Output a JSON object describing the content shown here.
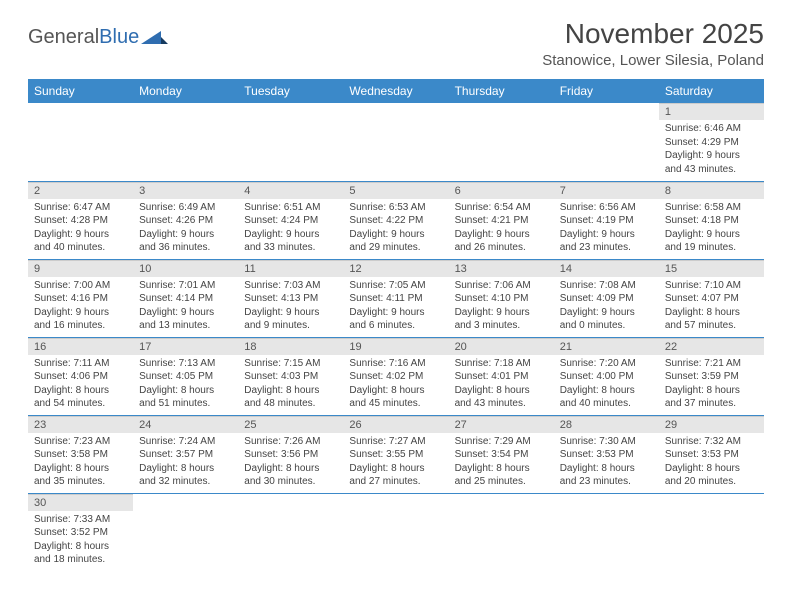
{
  "brand": {
    "name_part1": "General",
    "name_part2": "Blue"
  },
  "title": "November 2025",
  "location": "Stanowice, Lower Silesia, Poland",
  "colors": {
    "header_bg": "#3b89c9",
    "header_text": "#ffffff",
    "daynum_bg": "#e6e6e6",
    "row_divider": "#3b89c9",
    "text": "#444444"
  },
  "day_headers": [
    "Sunday",
    "Monday",
    "Tuesday",
    "Wednesday",
    "Thursday",
    "Friday",
    "Saturday"
  ],
  "first_weekday_index": 6,
  "days": [
    {
      "n": 1,
      "sunrise": "6:46 AM",
      "sunset": "4:29 PM",
      "daylight": "9 hours and 43 minutes."
    },
    {
      "n": 2,
      "sunrise": "6:47 AM",
      "sunset": "4:28 PM",
      "daylight": "9 hours and 40 minutes."
    },
    {
      "n": 3,
      "sunrise": "6:49 AM",
      "sunset": "4:26 PM",
      "daylight": "9 hours and 36 minutes."
    },
    {
      "n": 4,
      "sunrise": "6:51 AM",
      "sunset": "4:24 PM",
      "daylight": "9 hours and 33 minutes."
    },
    {
      "n": 5,
      "sunrise": "6:53 AM",
      "sunset": "4:22 PM",
      "daylight": "9 hours and 29 minutes."
    },
    {
      "n": 6,
      "sunrise": "6:54 AM",
      "sunset": "4:21 PM",
      "daylight": "9 hours and 26 minutes."
    },
    {
      "n": 7,
      "sunrise": "6:56 AM",
      "sunset": "4:19 PM",
      "daylight": "9 hours and 23 minutes."
    },
    {
      "n": 8,
      "sunrise": "6:58 AM",
      "sunset": "4:18 PM",
      "daylight": "9 hours and 19 minutes."
    },
    {
      "n": 9,
      "sunrise": "7:00 AM",
      "sunset": "4:16 PM",
      "daylight": "9 hours and 16 minutes."
    },
    {
      "n": 10,
      "sunrise": "7:01 AM",
      "sunset": "4:14 PM",
      "daylight": "9 hours and 13 minutes."
    },
    {
      "n": 11,
      "sunrise": "7:03 AM",
      "sunset": "4:13 PM",
      "daylight": "9 hours and 9 minutes."
    },
    {
      "n": 12,
      "sunrise": "7:05 AM",
      "sunset": "4:11 PM",
      "daylight": "9 hours and 6 minutes."
    },
    {
      "n": 13,
      "sunrise": "7:06 AM",
      "sunset": "4:10 PM",
      "daylight": "9 hours and 3 minutes."
    },
    {
      "n": 14,
      "sunrise": "7:08 AM",
      "sunset": "4:09 PM",
      "daylight": "9 hours and 0 minutes."
    },
    {
      "n": 15,
      "sunrise": "7:10 AM",
      "sunset": "4:07 PM",
      "daylight": "8 hours and 57 minutes."
    },
    {
      "n": 16,
      "sunrise": "7:11 AM",
      "sunset": "4:06 PM",
      "daylight": "8 hours and 54 minutes."
    },
    {
      "n": 17,
      "sunrise": "7:13 AM",
      "sunset": "4:05 PM",
      "daylight": "8 hours and 51 minutes."
    },
    {
      "n": 18,
      "sunrise": "7:15 AM",
      "sunset": "4:03 PM",
      "daylight": "8 hours and 48 minutes."
    },
    {
      "n": 19,
      "sunrise": "7:16 AM",
      "sunset": "4:02 PM",
      "daylight": "8 hours and 45 minutes."
    },
    {
      "n": 20,
      "sunrise": "7:18 AM",
      "sunset": "4:01 PM",
      "daylight": "8 hours and 43 minutes."
    },
    {
      "n": 21,
      "sunrise": "7:20 AM",
      "sunset": "4:00 PM",
      "daylight": "8 hours and 40 minutes."
    },
    {
      "n": 22,
      "sunrise": "7:21 AM",
      "sunset": "3:59 PM",
      "daylight": "8 hours and 37 minutes."
    },
    {
      "n": 23,
      "sunrise": "7:23 AM",
      "sunset": "3:58 PM",
      "daylight": "8 hours and 35 minutes."
    },
    {
      "n": 24,
      "sunrise": "7:24 AM",
      "sunset": "3:57 PM",
      "daylight": "8 hours and 32 minutes."
    },
    {
      "n": 25,
      "sunrise": "7:26 AM",
      "sunset": "3:56 PM",
      "daylight": "8 hours and 30 minutes."
    },
    {
      "n": 26,
      "sunrise": "7:27 AM",
      "sunset": "3:55 PM",
      "daylight": "8 hours and 27 minutes."
    },
    {
      "n": 27,
      "sunrise": "7:29 AM",
      "sunset": "3:54 PM",
      "daylight": "8 hours and 25 minutes."
    },
    {
      "n": 28,
      "sunrise": "7:30 AM",
      "sunset": "3:53 PM",
      "daylight": "8 hours and 23 minutes."
    },
    {
      "n": 29,
      "sunrise": "7:32 AM",
      "sunset": "3:53 PM",
      "daylight": "8 hours and 20 minutes."
    },
    {
      "n": 30,
      "sunrise": "7:33 AM",
      "sunset": "3:52 PM",
      "daylight": "8 hours and 18 minutes."
    }
  ],
  "labels": {
    "sunrise": "Sunrise:",
    "sunset": "Sunset:",
    "daylight": "Daylight:"
  }
}
